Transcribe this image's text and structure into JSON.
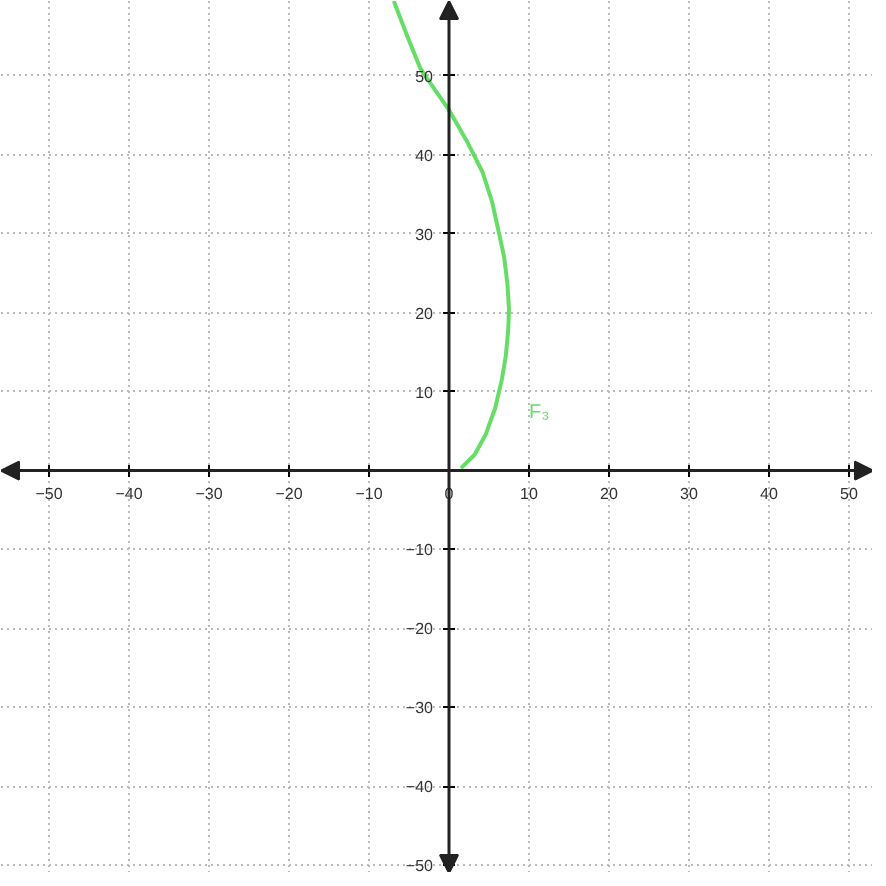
{
  "chart_data": {
    "type": "line",
    "x": [
      -6.9,
      -5.2,
      -3.6,
      -1.8,
      0,
      2.2,
      4.2,
      5.4,
      6.2,
      6.9,
      7.3,
      7.5,
      7.4,
      7.1,
      6.6,
      5.8,
      4.6,
      3.2,
      1.5
    ],
    "series": [
      {
        "color": "#66dd66",
        "values": [
          59.5,
          55.0,
          51.0,
          48.3,
          45.7,
          41.8,
          37.8,
          34.0,
          30.3,
          27.0,
          23.7,
          20.5,
          17.8,
          14.5,
          11.5,
          8.0,
          4.6,
          2.0,
          0.3
        ]
      }
    ],
    "annotations": [
      "F₃"
    ],
    "xlim": [
      -56,
      53
    ],
    "ylim": [
      -51,
      59.5
    ],
    "xticks": [
      -50,
      -40,
      -30,
      -20,
      -10,
      {
        "value": 0,
        "label": "0"
      },
      10,
      20,
      30,
      40,
      50
    ],
    "yticks": [
      -50,
      -40,
      -30,
      -20,
      -10,
      10,
      20,
      30,
      40,
      50
    ],
    "grid": true,
    "line_style": "solid"
  }
}
